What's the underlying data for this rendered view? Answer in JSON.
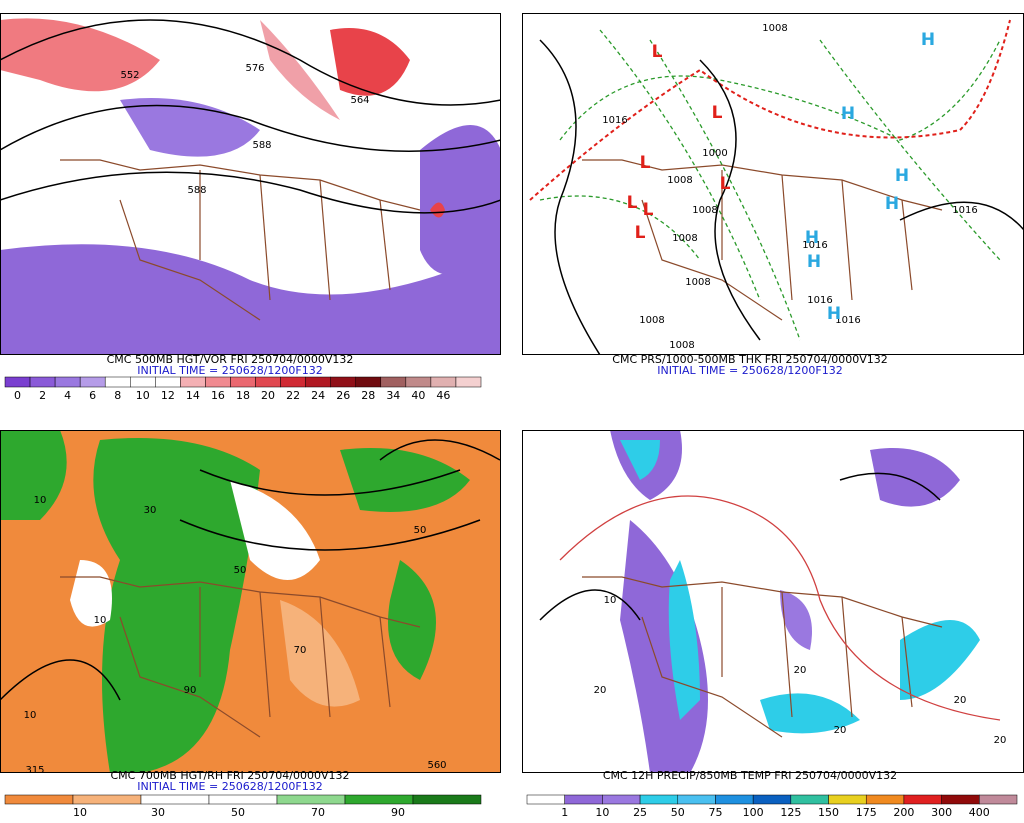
{
  "panels": [
    {
      "title": "CMC 500MB HGT/VOR FRI 250704/0000V132",
      "initial_time": "INITIAL TIME = 250628/1200F132",
      "legend": [
        0,
        2,
        4,
        6,
        8,
        10,
        12,
        14,
        16,
        18,
        20,
        22,
        24,
        26,
        28,
        34,
        40,
        46
      ],
      "map_labels": [
        "552",
        "576",
        "564",
        "588",
        "588"
      ]
    },
    {
      "title": "CMC PRS/1000-500MB THK FRI 250704/0000V132",
      "initial_time": "INITIAL TIME = 250628/1200F132",
      "legend": [],
      "map_labels": [
        "1008",
        "1016",
        "1000",
        "1008",
        "1008",
        "1008",
        "1008",
        "1008",
        "1008",
        "1016",
        "1016",
        "1016",
        "1016",
        "L",
        "L",
        "L",
        "L",
        "L",
        "L",
        "L",
        "H",
        "H",
        "H",
        "H",
        "H",
        "H",
        "H"
      ]
    },
    {
      "title": "CMC 700MB HGT/RH FRI 250704/0000V132",
      "initial_time": "INITIAL TIME = 250628/1200F132",
      "legend": [
        10,
        30,
        50,
        70,
        90
      ],
      "map_labels": [
        "10",
        "10",
        "30",
        "50",
        "50",
        "90",
        "70",
        "315",
        "10",
        "560"
      ]
    },
    {
      "title": "CMC 12H PRECIP/850MB TEMP FRI 250704/0000V132",
      "legend": [
        1,
        10,
        25,
        50,
        75,
        100,
        125,
        150,
        175,
        200,
        300,
        400
      ],
      "map_labels": [
        "10",
        "20",
        "20",
        "20",
        "20",
        "20"
      ]
    }
  ]
}
